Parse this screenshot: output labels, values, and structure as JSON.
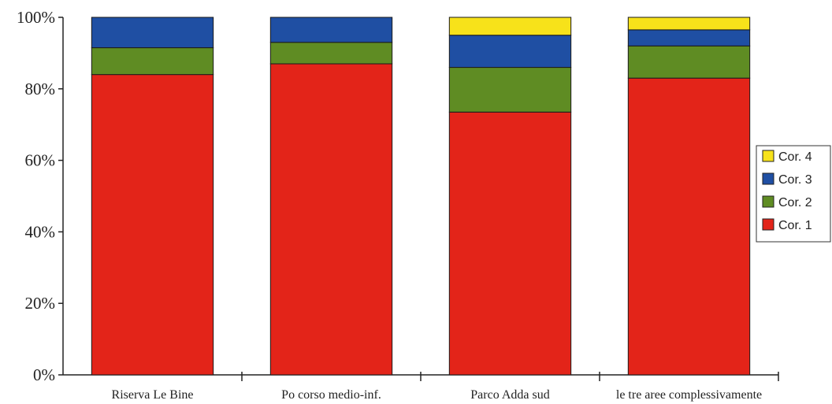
{
  "chart_data": {
    "type": "bar",
    "stacked": true,
    "percent_stacked": true,
    "categories": [
      "Riserva Le Bine",
      "Po corso medio-inf.",
      "Parco Adda sud",
      "le tre aree complessivamente"
    ],
    "series": [
      {
        "name": "Cor. 1",
        "color": "#e32419",
        "values": [
          84,
          87,
          73.5,
          83
        ]
      },
      {
        "name": "Cor. 2",
        "color": "#5f8c23",
        "values": [
          7.5,
          6,
          12.5,
          9
        ]
      },
      {
        "name": "Cor. 3",
        "color": "#1f4fa3",
        "values": [
          8.5,
          7,
          9,
          4.5
        ]
      },
      {
        "name": "Cor. 4",
        "color": "#f7e21a",
        "values": [
          0,
          0,
          5,
          3.5
        ]
      }
    ],
    "y_ticks": [
      "0%",
      "20%",
      "40%",
      "60%",
      "80%",
      "100%"
    ],
    "ylim": [
      0,
      100
    ],
    "legend": {
      "placement": "right",
      "order": [
        "Cor. 4",
        "Cor. 3",
        "Cor. 2",
        "Cor. 1"
      ]
    },
    "grid": false,
    "title": "",
    "xlabel": "",
    "ylabel": ""
  }
}
